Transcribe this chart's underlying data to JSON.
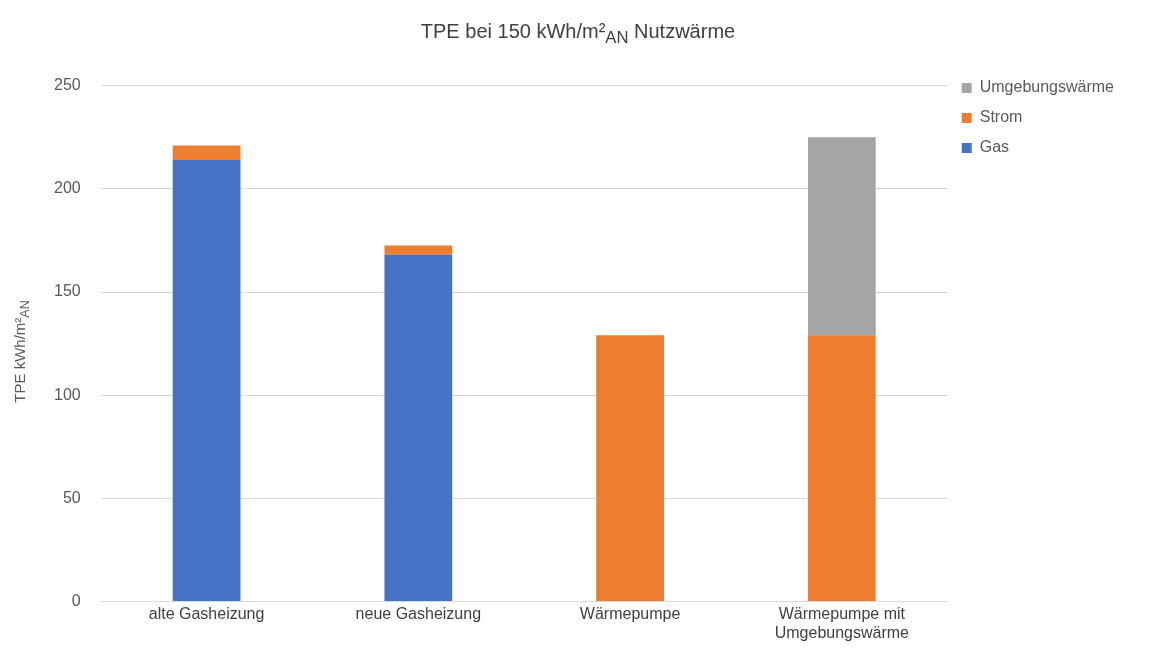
{
  "chart_data": {
    "type": "bar",
    "title": "TPE bei 150 kWh/m²$_{AN}$ Nutzwärme",
    "ylabel": "TPE kWh/m²$_{AN}$",
    "categories": [
      "alte Gasheizung",
      "neue Gasheizung",
      "Wärmepumpe",
      "Wärmepumpe mit Umgebungswärme"
    ],
    "stacked": true,
    "series": [
      {
        "name": "Gas",
        "color": "#4472c4",
        "values": [
          214,
          168,
          null,
          null
        ]
      },
      {
        "name": "Strom",
        "color": "#ed7d31",
        "values": [
          7,
          4.5,
          129,
          129
        ]
      },
      {
        "name": "Umgebungswärme",
        "color": "#a5a5a5",
        "values": [
          null,
          null,
          null,
          96
        ]
      }
    ],
    "ylim": [
      0,
      250
    ],
    "yticks": [
      0,
      50,
      100,
      150,
      200,
      250
    ],
    "grid": "y",
    "legend": "right"
  }
}
